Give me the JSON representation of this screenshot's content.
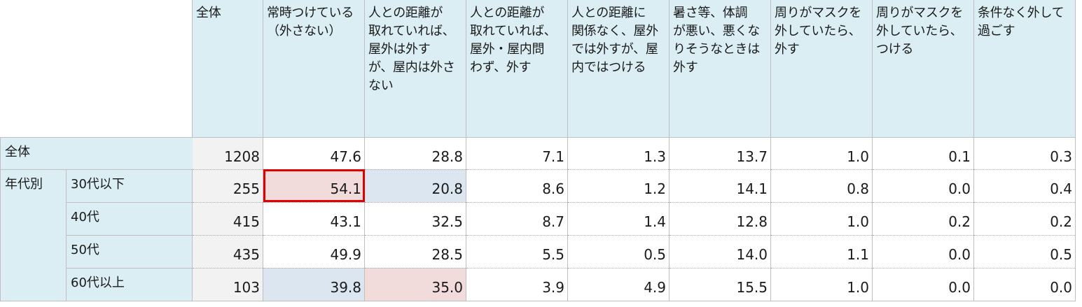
{
  "table": {
    "columns": [
      "全体",
      "常時つけている\n（外さない）",
      "人との距離が\n取れていれば、\n屋外は外す\nが、屋内は外さ\nない",
      "人との距離が\n取れていれば、\n屋外・屋内問\nわず、外す",
      "人との距離に\n関係なく、屋外\nでは外すが、屋\n内ではつける",
      "暑さ等、体調\nが悪い、悪くな\nりそうなときは\n外す",
      "周りがマスクを\n外していたら、\n外す",
      "周りがマスクを\n外していたら、\nつける",
      "条件なく外して\n過ごす"
    ],
    "group_label": "年代別",
    "rows": [
      {
        "label": "全体",
        "values": [
          "1208",
          "47.6",
          "28.8",
          "7.1",
          "1.3",
          "13.7",
          "1.0",
          "0.1",
          "0.3"
        ]
      },
      {
        "label": "30代以下",
        "values": [
          "255",
          "54.1",
          "20.8",
          "8.6",
          "1.2",
          "14.1",
          "0.8",
          "0.0",
          "0.4"
        ]
      },
      {
        "label": "40代",
        "values": [
          "415",
          "43.1",
          "32.5",
          "8.7",
          "1.4",
          "12.8",
          "1.0",
          "0.2",
          "0.2"
        ]
      },
      {
        "label": "50代",
        "values": [
          "435",
          "49.9",
          "28.5",
          "5.5",
          "0.5",
          "14.0",
          "1.1",
          "0.0",
          "0.5"
        ]
      },
      {
        "label": "60代以上",
        "values": [
          "103",
          "39.8",
          "35.0",
          "3.9",
          "4.9",
          "15.5",
          "1.0",
          "0.0",
          "0.0"
        ]
      }
    ]
  },
  "colors": {
    "header_bg": "#daeef3",
    "n_column_bg": "#f2f2f2",
    "highlight_red": "#f2dcdb",
    "highlight_blue": "#dce6f1",
    "box_outline": "#e00000"
  },
  "chart_data": {
    "type": "table",
    "columns": [
      "全体",
      "常時つけている（外さない）",
      "人との距離が取れていれば、屋外は外すが、屋内は外さない",
      "人との距離が取れていれば、屋外・屋内問わず、外す",
      "人との距離に関係なく、屋外では外すが、屋内ではつける",
      "暑さ等、体調が悪い、悪くなりそうなときは外す",
      "周りがマスクを外していたら、外す",
      "周りがマスクを外していたら、つける",
      "条件なく外して過ごす"
    ],
    "rows": [
      "全体",
      "30代以下",
      "40代",
      "50代",
      "60代以上"
    ],
    "values": [
      [
        1208,
        47.6,
        28.8,
        7.1,
        1.3,
        13.7,
        1.0,
        0.1,
        0.3
      ],
      [
        255,
        54.1,
        20.8,
        8.6,
        1.2,
        14.1,
        0.8,
        0.0,
        0.4
      ],
      [
        415,
        43.1,
        32.5,
        8.7,
        1.4,
        12.8,
        1.0,
        0.2,
        0.2
      ],
      [
        435,
        49.9,
        28.5,
        5.5,
        0.5,
        14.0,
        1.1,
        0.0,
        0.5
      ],
      [
        103,
        39.8,
        35.0,
        3.9,
        4.9,
        15.5,
        1.0,
        0.0,
        0.0
      ]
    ],
    "highlights": {
      "red_fill": [
        [
          1,
          1
        ],
        [
          4,
          2
        ]
      ],
      "blue_fill": [
        [
          1,
          2
        ],
        [
          4,
          1
        ]
      ],
      "boxed": [
        [
          1,
          1
        ]
      ]
    }
  }
}
